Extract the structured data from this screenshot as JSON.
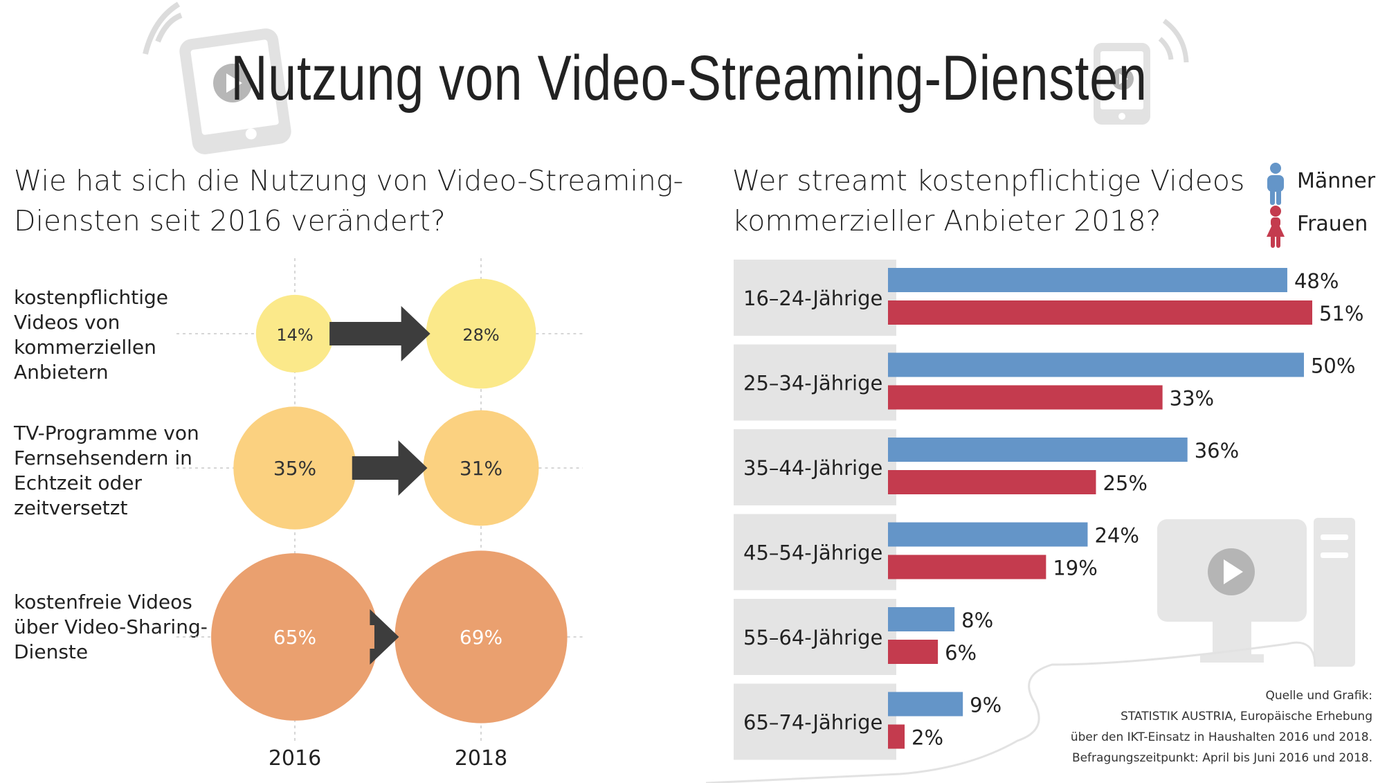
{
  "title": "Nutzung von Video-Streaming-Diensten",
  "left_chart": {
    "subtitle_line1": "Wie hat sich die Nutzung von Video-Streaming-",
    "subtitle_line2": "Diensten seit 2016 verändert?",
    "years": [
      "2016",
      "2018"
    ]
  },
  "right_chart": {
    "subtitle_line1": "Wer streamt kostenpflichtige Videos",
    "subtitle_line2": "kommerzieller Anbieter 2018?",
    "legend": [
      {
        "label": "Männer",
        "color": "#6495c8",
        "icon": "male-person-icon"
      },
      {
        "label": "Frauen",
        "color": "#c43b4e",
        "icon": "female-person-icon"
      }
    ]
  },
  "source": {
    "line1": "Quelle und Grafik:",
    "line2": "STATISTIK AUSTRIA, Europäische Erhebung",
    "line3": "über den IKT-Einsatz in Haushalten 2016 und 2018.",
    "line4": "Befragungszeitpunkt: April bis Juni 2016 und 2018."
  },
  "colors": {
    "circle_small": "#fbe98a",
    "circle_medium": "#fbd180",
    "circle_large": "#eaa06f",
    "arrow": "#3d3d3d",
    "category_box": "#e4e4e4",
    "icon_gray": "#e0e0e0",
    "icon_dark": "#b5b5b5"
  },
  "chart_data": [
    {
      "type": "bubble-comparison",
      "categories": [
        "kostenpflichtige Videos von kommerziellen Anbietern",
        "TV-Programme von Fernsehsendern in Echtzeit oder zeitversetzt",
        "kostenfreie Videos über Video-Sharing-Dienste"
      ],
      "x": [
        "2016",
        "2018"
      ],
      "series": [
        {
          "name": "2016",
          "values": [
            14,
            35,
            65
          ],
          "labels": [
            "14%",
            "35%",
            "65%"
          ]
        },
        {
          "name": "2018",
          "values": [
            28,
            31,
            69
          ],
          "labels": [
            "28%",
            "31%",
            "69%"
          ]
        }
      ],
      "unit": "%"
    },
    {
      "type": "bar",
      "orientation": "horizontal",
      "categories": [
        "16–24-Jährige",
        "25–34-Jährige",
        "35–44-Jährige",
        "45–54-Jährige",
        "55–64-Jährige",
        "65–74-Jährige"
      ],
      "series": [
        {
          "name": "Männer",
          "color": "#6495c8",
          "values": [
            48,
            50,
            36,
            24,
            8,
            9
          ]
        },
        {
          "name": "Frauen",
          "color": "#c43b4e",
          "values": [
            51,
            33,
            25,
            19,
            6,
            2
          ]
        }
      ],
      "xlim": [
        0,
        51
      ],
      "grid": false,
      "legend": "top-right",
      "unit": "%"
    }
  ]
}
